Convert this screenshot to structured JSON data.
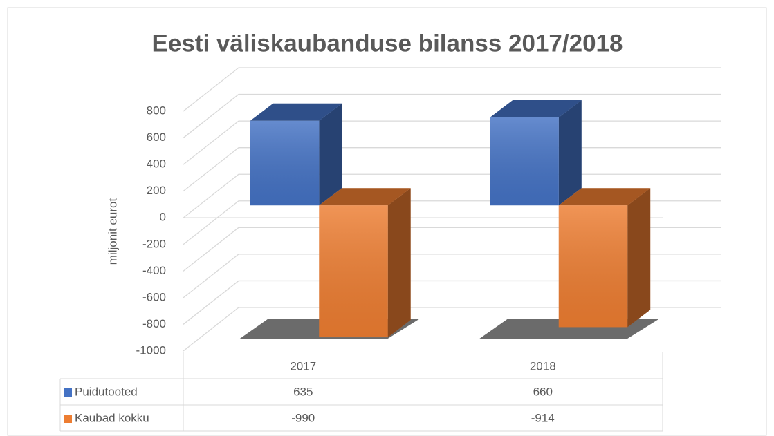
{
  "chart_data": {
    "type": "bar3d",
    "title": "Eesti väliskaubanduse bilanss 2017/2018",
    "y_label": "miljonit eurot",
    "categories": [
      "2017",
      "2018"
    ],
    "series": [
      {
        "name": "Puidutooted",
        "color": "#4472c4",
        "values": [
          635,
          660
        ]
      },
      {
        "name": "Kaubad kokku",
        "color": "#ed7d31",
        "values": [
          -990,
          -914
        ]
      }
    ],
    "ylim": [
      -1000,
      800
    ],
    "yticks": [
      -1000,
      -800,
      -600,
      -400,
      -200,
      0,
      200,
      400,
      600,
      800
    ],
    "grid": true,
    "data_table": true
  }
}
